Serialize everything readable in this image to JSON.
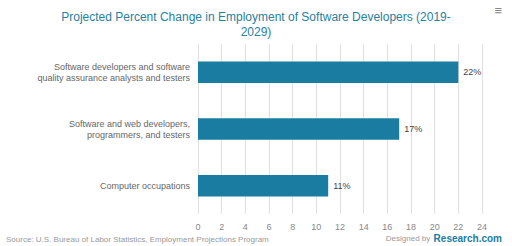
{
  "chart_data": {
    "type": "bar",
    "orientation": "horizontal",
    "title": "Projected Percent Change in Employment of Software Developers (2019-\n2029)",
    "categories": [
      "Computer occupations",
      "Software and web developers,\nprogrammers, and testers",
      "Software developers and software\nquality assurance analysts and testers"
    ],
    "values": [
      11,
      17,
      22
    ],
    "value_labels": [
      "11%",
      "17%",
      "22%"
    ],
    "data_labels": true,
    "color": "#1a7ca0",
    "xlim": [
      0,
      24
    ],
    "xticks": [
      0,
      2,
      4,
      6,
      8,
      10,
      12,
      14,
      16,
      18,
      20,
      22,
      24
    ],
    "grid": true,
    "annotations": [
      "≡",
      "Source: U.S. Bureau of Labor Statistics, Employment Projections Program",
      "Designed by",
      "Research.com"
    ]
  }
}
